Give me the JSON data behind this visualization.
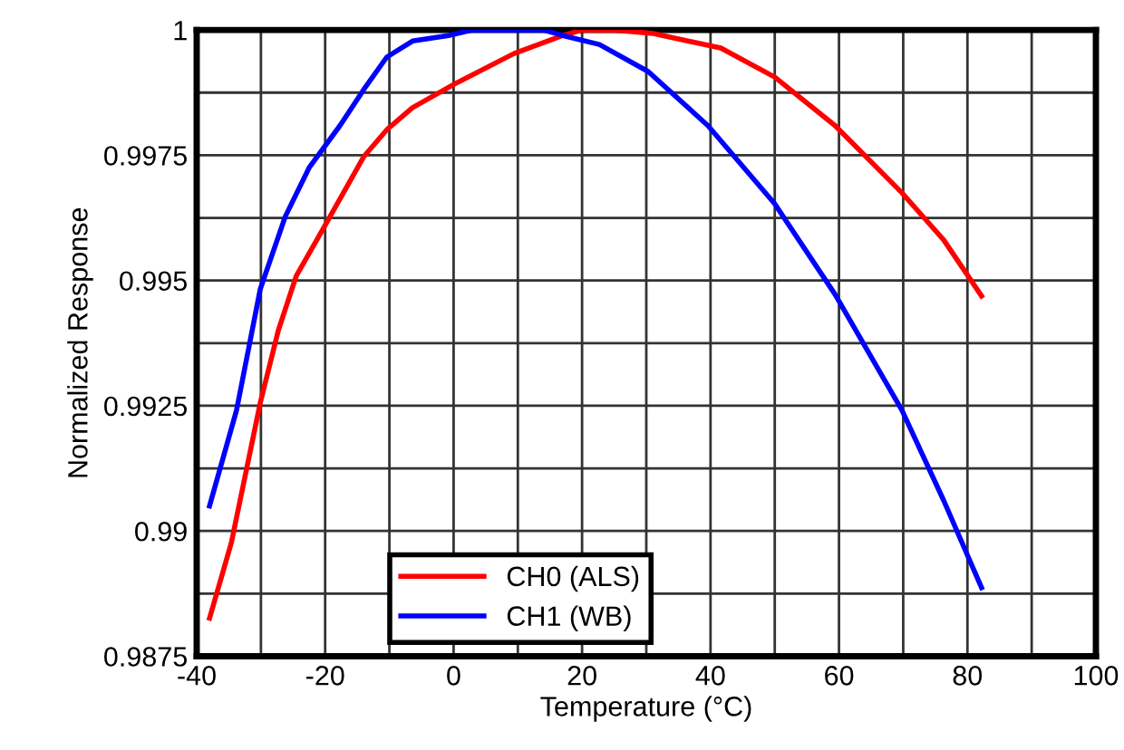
{
  "chart_data": {
    "type": "line",
    "xlabel": "Temperature (°C)",
    "ylabel": "Normalized Response",
    "xlim": [
      -40,
      100
    ],
    "ylim": [
      0.9875,
      1
    ],
    "xticks": [
      -40,
      {
        "value": -30,
        "label": null
      },
      -20,
      {
        "value": -10,
        "label": null
      },
      0,
      {
        "value": 10,
        "label": null
      },
      20,
      {
        "value": 30,
        "label": null
      },
      40,
      {
        "value": 50,
        "label": null
      },
      60,
      {
        "value": 70,
        "label": null
      },
      80,
      {
        "value": 90,
        "label": null
      },
      100
    ],
    "yticks": [
      0.9875,
      {
        "value": 0.98875,
        "label": null
      },
      0.99,
      {
        "value": 0.99125,
        "label": null
      },
      0.9925,
      {
        "value": 0.99375,
        "label": null
      },
      0.995,
      {
        "value": 0.99625,
        "label": null
      },
      0.9975,
      {
        "value": 0.99875,
        "label": null
      },
      1
    ],
    "grid": true,
    "legend": "bottom",
    "marker": "none",
    "line_style": "solid",
    "series": [
      {
        "name": "CH0 (ALS)",
        "color": "#ff0000",
        "x": [
          -38,
          -34.6,
          -30.1,
          -27.3,
          -24.5,
          -19.7,
          -14,
          -10.4,
          -6.4,
          0.1,
          9.4,
          17,
          20,
          25,
          31.1,
          41.6,
          50,
          59.4,
          69.8,
          76.3,
          82.2
        ],
        "values": [
          0.98826,
          0.98977,
          0.99256,
          0.994,
          0.99509,
          0.99617,
          0.99747,
          0.99801,
          0.99845,
          0.99892,
          0.99953,
          0.99989,
          1,
          1,
          0.99993,
          0.99964,
          0.99906,
          0.99809,
          0.99675,
          0.99581,
          0.99469
        ]
      },
      {
        "name": "CH1 (WB)",
        "color": "#0000ff",
        "x": [
          -38,
          -33.8,
          -30.1,
          -26.2,
          -22.5,
          -17.7,
          -14,
          -10.4,
          -6.4,
          -0.8,
          2.9,
          8,
          14,
          17,
          22.7,
          30.3,
          39.6,
          50,
          59.4,
          69.8,
          76.3,
          82.2
        ],
        "values": [
          0.9905,
          0.99241,
          0.99483,
          0.99628,
          0.99725,
          0.99809,
          0.99881,
          0.99946,
          0.99978,
          0.99989,
          1,
          1,
          1,
          0.99989,
          0.99971,
          0.99917,
          0.99809,
          0.99653,
          0.99472,
          0.99241,
          0.99061,
          0.98887
        ]
      }
    ]
  }
}
